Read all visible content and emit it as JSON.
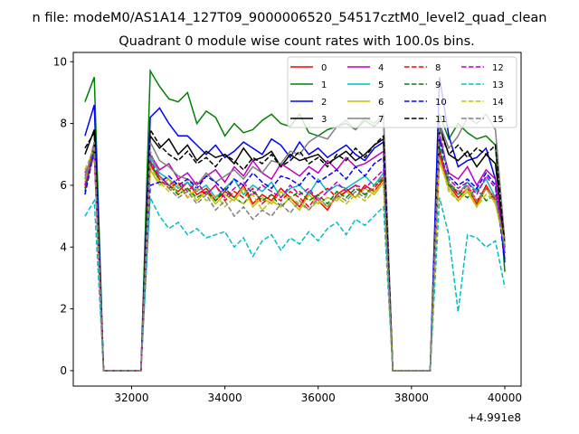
{
  "chart_data": {
    "type": "line",
    "suptitle": "n file: modeM0/AS1A14_127T09_9000006520_54517cztM0_level2_quad_clean",
    "title": "Quadrant 0 module wise count rates with 100.0s bins.",
    "xlabel": "",
    "ylabel": "",
    "x_offset_label": "+4.991e8",
    "xlim": [
      30750,
      40350
    ],
    "ylim": [
      -0.5,
      10.3
    ],
    "xticks": [
      32000,
      34000,
      36000,
      38000,
      40000
    ],
    "yticks": [
      0,
      2,
      4,
      6,
      8,
      10
    ],
    "legend": "top-right",
    "x": [
      31000,
      31200,
      31400,
      31600,
      31800,
      32000,
      32200,
      32400,
      32600,
      32800,
      33000,
      33200,
      33400,
      33600,
      33800,
      34000,
      34200,
      34400,
      34600,
      34800,
      35000,
      35200,
      35400,
      35600,
      35800,
      36000,
      36200,
      36400,
      36600,
      36800,
      37000,
      37200,
      37400,
      37600,
      37800,
      38000,
      38200,
      38400,
      38600,
      38800,
      39000,
      39200,
      39400,
      39600,
      39800,
      40000
    ],
    "series": [
      {
        "name": "0",
        "color": "#ff0000",
        "dash": false,
        "values": [
          6.0,
          7.4,
          0,
          0,
          0,
          0,
          0,
          6.6,
          6.3,
          6.0,
          5.8,
          6.1,
          5.7,
          5.9,
          5.5,
          5.8,
          5.6,
          6.0,
          5.4,
          5.7,
          5.5,
          5.9,
          5.6,
          5.3,
          5.8,
          5.5,
          5.2,
          5.7,
          5.9,
          5.6,
          6.0,
          5.8,
          6.2,
          0,
          0,
          0,
          0,
          0,
          7.0,
          6.0,
          5.6,
          5.9,
          5.4,
          6.0,
          5.5,
          4.2
        ]
      },
      {
        "name": "1",
        "color": "#008000",
        "dash": false,
        "values": [
          8.7,
          9.5,
          0,
          0,
          0,
          0,
          0,
          9.7,
          9.2,
          8.8,
          8.7,
          9.0,
          8.0,
          8.4,
          8.2,
          7.6,
          8.0,
          7.7,
          7.8,
          8.1,
          8.3,
          8.0,
          7.9,
          8.3,
          7.7,
          7.6,
          7.8,
          7.9,
          8.0,
          7.8,
          8.1,
          7.9,
          8.2,
          0,
          0,
          0,
          0,
          0,
          8.3,
          7.5,
          8.0,
          7.7,
          7.5,
          7.6,
          7.3,
          3.2
        ]
      },
      {
        "name": "2",
        "color": "#0000ff",
        "dash": false,
        "values": [
          7.6,
          8.6,
          0,
          0,
          0,
          0,
          0,
          8.2,
          8.5,
          8.0,
          7.6,
          7.6,
          7.3,
          7.0,
          7.3,
          6.9,
          7.1,
          7.4,
          7.2,
          7.0,
          7.5,
          7.3,
          6.9,
          7.4,
          7.0,
          7.2,
          6.9,
          7.1,
          7.3,
          7.0,
          6.8,
          7.2,
          7.4,
          0,
          0,
          0,
          0,
          0,
          9.5,
          7.6,
          6.6,
          6.8,
          6.9,
          7.2,
          6.2,
          3.6
        ]
      },
      {
        "name": "3",
        "color": "#000000",
        "dash": false,
        "values": [
          7.0,
          7.8,
          0,
          0,
          0,
          0,
          0,
          7.6,
          7.2,
          7.5,
          7.0,
          7.3,
          6.8,
          7.1,
          6.9,
          7.0,
          6.7,
          7.2,
          6.8,
          6.9,
          7.1,
          6.6,
          7.0,
          6.8,
          6.9,
          7.0,
          6.7,
          6.9,
          7.1,
          6.8,
          7.0,
          7.3,
          7.5,
          0,
          0,
          0,
          0,
          0,
          7.9,
          7.0,
          6.8,
          7.1,
          6.6,
          7.0,
          6.7,
          4.0
        ]
      },
      {
        "name": "4",
        "color": "#bf00bf",
        "dash": false,
        "values": [
          6.4,
          7.0,
          0,
          0,
          0,
          0,
          0,
          7.0,
          6.5,
          6.7,
          6.2,
          6.4,
          6.0,
          6.3,
          6.5,
          6.1,
          6.6,
          6.3,
          6.8,
          6.4,
          6.2,
          6.7,
          6.5,
          6.3,
          6.6,
          6.4,
          6.8,
          6.5,
          6.9,
          6.6,
          6.7,
          6.9,
          7.1,
          0,
          0,
          0,
          0,
          0,
          7.6,
          6.4,
          6.2,
          6.6,
          6.0,
          6.5,
          6.2,
          3.8
        ]
      },
      {
        "name": "5",
        "color": "#00bfbf",
        "dash": false,
        "values": [
          6.2,
          7.1,
          0,
          0,
          0,
          0,
          0,
          6.9,
          6.4,
          6.2,
          5.9,
          6.1,
          5.8,
          6.0,
          5.6,
          5.9,
          6.2,
          5.7,
          6.0,
          5.8,
          6.1,
          5.6,
          5.9,
          6.0,
          5.7,
          6.2,
          5.8,
          6.0,
          5.9,
          6.1,
          6.3,
          6.0,
          6.4,
          0,
          0,
          0,
          0,
          0,
          7.2,
          6.0,
          5.7,
          6.1,
          5.8,
          6.2,
          5.6,
          3.9
        ]
      },
      {
        "name": "6",
        "color": "#bfbf00",
        "dash": false,
        "values": [
          6.1,
          7.0,
          0,
          0,
          0,
          0,
          0,
          6.5,
          6.0,
          6.2,
          5.7,
          5.9,
          5.5,
          5.8,
          5.4,
          5.7,
          5.5,
          5.9,
          5.3,
          5.6,
          5.4,
          5.8,
          5.5,
          5.2,
          5.7,
          5.4,
          5.6,
          5.5,
          5.8,
          5.6,
          5.9,
          5.7,
          6.1,
          0,
          0,
          0,
          0,
          0,
          6.8,
          5.9,
          5.5,
          5.8,
          5.3,
          5.9,
          5.4,
          4.1
        ]
      },
      {
        "name": "7",
        "color": "#808080",
        "dash": false,
        "values": [
          6.3,
          7.2,
          0,
          0,
          0,
          0,
          0,
          7.4,
          6.8,
          6.6,
          6.3,
          6.2,
          6.0,
          6.4,
          6.1,
          6.3,
          6.5,
          6.2,
          6.6,
          6.4,
          6.8,
          6.7,
          7.1,
          7.0,
          7.4,
          7.6,
          7.5,
          7.9,
          8.1,
          7.8,
          8.2,
          8.0,
          8.3,
          0,
          0,
          0,
          0,
          0,
          8.0,
          7.2,
          7.6,
          8.2,
          8.0,
          8.3,
          7.8,
          4.2
        ]
      },
      {
        "name": "8",
        "color": "#ff0000",
        "dash": true,
        "values": [
          5.9,
          7.3,
          0,
          0,
          0,
          0,
          0,
          6.7,
          6.2,
          5.9,
          6.1,
          5.6,
          5.9,
          5.7,
          6.0,
          5.5,
          5.8,
          5.6,
          5.9,
          5.4,
          5.7,
          5.5,
          5.8,
          5.6,
          5.3,
          5.7,
          5.9,
          5.6,
          5.8,
          6.0,
          5.7,
          5.9,
          6.3,
          0,
          0,
          0,
          0,
          0,
          7.1,
          6.1,
          5.7,
          6.0,
          5.5,
          5.9,
          5.6,
          4.3
        ]
      },
      {
        "name": "9",
        "color": "#008000",
        "dash": true,
        "values": [
          5.8,
          7.2,
          0,
          0,
          0,
          0,
          0,
          6.8,
          6.1,
          6.0,
          5.7,
          5.9,
          5.6,
          5.8,
          5.5,
          5.9,
          5.6,
          5.4,
          5.8,
          5.5,
          5.7,
          5.3,
          5.6,
          5.8,
          5.5,
          5.7,
          5.4,
          5.8,
          5.6,
          5.9,
          5.7,
          6.0,
          6.2,
          0,
          0,
          0,
          0,
          0,
          7.3,
          6.0,
          5.8,
          5.6,
          5.9,
          5.5,
          5.7,
          4.0
        ]
      },
      {
        "name": "10",
        "color": "#0000ff",
        "dash": true,
        "values": [
          5.7,
          7.1,
          0,
          0,
          0,
          0,
          0,
          6.0,
          6.1,
          6.3,
          6.0,
          6.2,
          5.9,
          6.3,
          6.1,
          5.8,
          6.2,
          6.0,
          6.4,
          6.1,
          5.9,
          6.3,
          6.2,
          6.0,
          6.4,
          6.1,
          6.3,
          6.5,
          6.2,
          6.6,
          6.3,
          6.7,
          6.9,
          0,
          0,
          0,
          0,
          0,
          7.5,
          6.3,
          6.0,
          6.2,
          5.9,
          6.4,
          6.0,
          3.5
        ]
      },
      {
        "name": "11",
        "color": "#000000",
        "dash": true,
        "values": [
          7.2,
          7.7,
          0,
          0,
          0,
          0,
          0,
          7.8,
          7.3,
          7.0,
          6.8,
          7.1,
          6.7,
          6.9,
          6.6,
          7.0,
          6.8,
          6.5,
          6.9,
          6.7,
          7.0,
          6.6,
          6.8,
          7.1,
          6.7,
          6.9,
          6.6,
          7.0,
          6.8,
          7.2,
          6.9,
          7.3,
          7.6,
          0,
          0,
          0,
          0,
          0,
          7.8,
          7.0,
          7.3,
          6.9,
          7.2,
          7.0,
          7.3,
          4.0
        ]
      },
      {
        "name": "12",
        "color": "#bf00bf",
        "dash": true,
        "values": [
          6.0,
          7.0,
          0,
          0,
          0,
          0,
          0,
          6.8,
          6.3,
          6.0,
          6.2,
          5.8,
          6.1,
          5.7,
          6.0,
          5.6,
          5.9,
          6.1,
          5.7,
          6.0,
          5.8,
          5.6,
          6.0,
          5.7,
          5.9,
          5.5,
          5.8,
          6.1,
          5.8,
          6.0,
          5.9,
          6.2,
          6.5,
          0,
          0,
          0,
          0,
          0,
          7.0,
          6.2,
          5.9,
          6.1,
          5.7,
          6.3,
          5.9,
          3.8
        ]
      },
      {
        "name": "13",
        "color": "#00bfbf",
        "dash": true,
        "values": [
          5.0,
          5.5,
          0,
          0,
          0,
          0,
          0,
          5.6,
          5.0,
          4.6,
          4.8,
          4.4,
          4.6,
          4.3,
          4.4,
          4.5,
          4.0,
          4.3,
          3.7,
          4.2,
          4.4,
          3.9,
          4.3,
          4.1,
          4.5,
          4.2,
          4.6,
          4.8,
          4.4,
          4.9,
          4.7,
          5.0,
          5.3,
          0,
          0,
          0,
          0,
          0,
          5.6,
          4.4,
          1.9,
          4.4,
          4.3,
          4.0,
          4.2,
          2.7
        ]
      },
      {
        "name": "14",
        "color": "#bfbf00",
        "dash": true,
        "values": [
          6.5,
          7.2,
          0,
          0,
          0,
          0,
          0,
          6.6,
          6.1,
          5.8,
          6.0,
          5.6,
          5.9,
          5.5,
          5.7,
          5.3,
          5.6,
          5.4,
          5.7,
          5.2,
          5.5,
          5.3,
          5.6,
          5.4,
          5.2,
          5.5,
          5.3,
          5.6,
          5.4,
          5.7,
          5.5,
          5.8,
          6.1,
          0,
          0,
          0,
          0,
          0,
          6.9,
          5.8,
          5.5,
          5.9,
          5.3,
          5.7,
          5.5,
          4.1
        ]
      },
      {
        "name": "15",
        "color": "#808080",
        "dash": true,
        "values": [
          6.2,
          7.4,
          0,
          0,
          0,
          0,
          0,
          7.1,
          6.3,
          5.9,
          5.6,
          5.8,
          5.4,
          5.7,
          5.2,
          5.5,
          5.0,
          5.3,
          4.9,
          5.2,
          5.0,
          5.4,
          5.1,
          5.5,
          5.2,
          5.6,
          5.3,
          5.7,
          5.5,
          5.8,
          5.6,
          6.0,
          6.3,
          0,
          0,
          0,
          0,
          0,
          8.0,
          6.1,
          5.8,
          6.0,
          5.5,
          5.9,
          5.6,
          4.0
        ]
      }
    ]
  }
}
